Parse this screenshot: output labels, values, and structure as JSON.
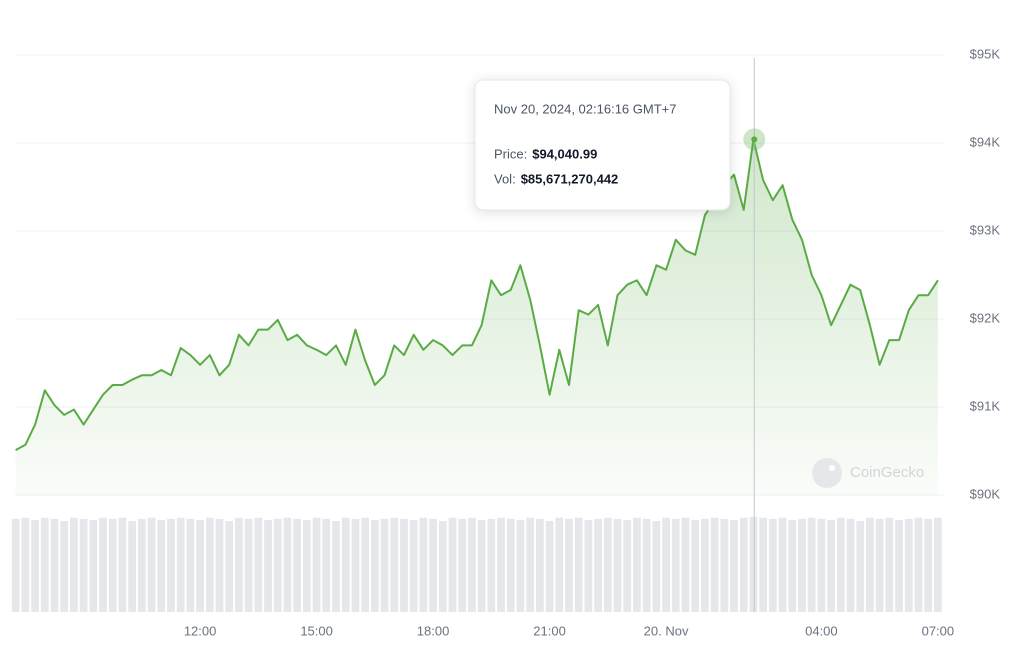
{
  "chart_data": {
    "type": "line",
    "x": [
      "2024-11-19 07:15",
      "2024-11-19 07:30",
      "2024-11-19 07:45",
      "2024-11-19 08:00",
      "2024-11-19 08:15",
      "2024-11-19 08:30",
      "2024-11-19 08:45",
      "2024-11-19 09:00",
      "2024-11-19 09:15",
      "2024-11-19 09:30",
      "2024-11-19 09:45",
      "2024-11-19 10:00",
      "2024-11-19 10:15",
      "2024-11-19 10:30",
      "2024-11-19 10:45",
      "2024-11-19 11:00",
      "2024-11-19 11:15",
      "2024-11-19 11:30",
      "2024-11-19 11:45",
      "2024-11-19 12:00",
      "2024-11-19 12:15",
      "2024-11-19 12:30",
      "2024-11-19 12:45",
      "2024-11-19 13:00",
      "2024-11-19 13:15",
      "2024-11-19 13:30",
      "2024-11-19 13:45",
      "2024-11-19 14:00",
      "2024-11-19 14:15",
      "2024-11-19 14:30",
      "2024-11-19 14:45",
      "2024-11-19 15:00",
      "2024-11-19 15:15",
      "2024-11-19 15:30",
      "2024-11-19 15:45",
      "2024-11-19 16:00",
      "2024-11-19 16:15",
      "2024-11-19 16:30",
      "2024-11-19 16:45",
      "2024-11-19 17:00",
      "2024-11-19 17:15",
      "2024-11-19 17:30",
      "2024-11-19 17:45",
      "2024-11-19 18:00",
      "2024-11-19 18:15",
      "2024-11-19 18:30",
      "2024-11-19 18:45",
      "2024-11-19 19:00",
      "2024-11-19 19:15",
      "2024-11-19 19:30",
      "2024-11-19 19:45",
      "2024-11-19 20:00",
      "2024-11-19 20:15",
      "2024-11-19 20:30",
      "2024-11-19 20:45",
      "2024-11-19 21:00",
      "2024-11-19 21:15",
      "2024-11-19 21:30",
      "2024-11-19 21:45",
      "2024-11-19 22:00",
      "2024-11-19 22:15",
      "2024-11-19 22:30",
      "2024-11-19 22:45",
      "2024-11-19 23:00",
      "2024-11-19 23:15",
      "2024-11-19 23:30",
      "2024-11-19 23:45",
      "2024-11-20 00:00",
      "2024-11-20 00:15",
      "2024-11-20 00:30",
      "2024-11-20 00:45",
      "2024-11-20 01:00",
      "2024-11-20 01:15",
      "2024-11-20 01:30",
      "2024-11-20 01:45",
      "2024-11-20 02:00",
      "2024-11-20 02:15",
      "2024-11-20 02:30",
      "2024-11-20 02:45",
      "2024-11-20 03:00",
      "2024-11-20 03:15",
      "2024-11-20 03:30",
      "2024-11-20 03:45",
      "2024-11-20 04:00",
      "2024-11-20 04:15",
      "2024-11-20 04:30",
      "2024-11-20 04:45",
      "2024-11-20 05:00",
      "2024-11-20 05:15",
      "2024-11-20 05:30",
      "2024-11-20 05:45",
      "2024-11-20 06:00",
      "2024-11-20 06:15",
      "2024-11-20 06:30",
      "2024-11-20 06:45",
      "2024-11-20 07:00"
    ],
    "series": [
      {
        "name": "Price",
        "color": "#5aab46",
        "values": [
          90510,
          90570,
          90800,
          91190,
          91020,
          90910,
          90970,
          90800,
          90970,
          91140,
          91250,
          91250,
          91310,
          91360,
          91360,
          91420,
          91360,
          91670,
          91590,
          91480,
          91590,
          91360,
          91480,
          91820,
          91700,
          91880,
          91880,
          91990,
          91760,
          91820,
          91700,
          91650,
          91590,
          91700,
          91480,
          91880,
          91530,
          91250,
          91360,
          91700,
          91590,
          91820,
          91650,
          91760,
          91700,
          91590,
          91700,
          91700,
          91930,
          92440,
          92270,
          92330,
          92610,
          92220,
          91700,
          91140,
          91650,
          91250,
          92100,
          92050,
          92160,
          91700,
          92270,
          92390,
          92440,
          92270,
          92610,
          92560,
          92900,
          92780,
          92730,
          93180,
          93350,
          93520,
          93640,
          93240,
          94040.99,
          93580,
          93350,
          93520,
          93130,
          92900,
          92500,
          92270,
          91930,
          92160,
          92390,
          92330,
          91930,
          91480,
          91760,
          91760,
          92100,
          92270,
          92270,
          92440
        ]
      },
      {
        "name": "Vol",
        "color": "#e5e7eb",
        "values": [
          84000000000.0,
          85000000000.0,
          83000000000.0,
          85000000000.0,
          84000000000.0,
          82000000000.0,
          85000000000.0,
          84000000000.0,
          83000000000.0,
          85000000000.0,
          84000000000.0,
          85000000000.0,
          82000000000.0,
          84000000000.0,
          85000000000.0,
          83000000000.0,
          84000000000.0,
          85000000000.0,
          84000000000.0,
          83000000000.0,
          85000000000.0,
          84000000000.0,
          82000000000.0,
          85000000000.0,
          84000000000.0,
          85000000000.0,
          83000000000.0,
          84000000000.0,
          85000000000.0,
          84000000000.0,
          83000000000.0,
          85000000000.0,
          84000000000.0,
          82000000000.0,
          85000000000.0,
          84000000000.0,
          85000000000.0,
          83000000000.0,
          84000000000.0,
          85000000000.0,
          84000000000.0,
          83000000000.0,
          85000000000.0,
          84000000000.0,
          82000000000.0,
          85000000000.0,
          84000000000.0,
          85000000000.0,
          83000000000.0,
          84000000000.0,
          85000000000.0,
          84000000000.0,
          83000000000.0,
          85000000000.0,
          84000000000.0,
          82000000000.0,
          85000000000.0,
          84000000000.0,
          85000000000.0,
          83000000000.0,
          84000000000.0,
          85000000000.0,
          84000000000.0,
          83000000000.0,
          85000000000.0,
          84000000000.0,
          82000000000.0,
          85000000000.0,
          84000000000.0,
          85000000000.0,
          83000000000.0,
          84000000000.0,
          85000000000.0,
          84000000000.0,
          83000000000.0,
          85000000000.0,
          85671270442,
          85000000000.0,
          84000000000.0,
          85000000000.0,
          83000000000.0,
          84000000000.0,
          85000000000.0,
          84000000000.0,
          83000000000.0,
          85000000000.0,
          84000000000.0,
          82000000000.0,
          85000000000.0,
          84000000000.0,
          85000000000.0,
          83000000000.0,
          84000000000.0,
          85000000000.0,
          84000000000.0,
          85000000000.0
        ]
      }
    ],
    "xlim": [
      "2024-11-19 07:14",
      "2024-11-20 07:11"
    ],
    "xticks": [
      {
        "value": "2024-11-19 12:00",
        "label": "12:00"
      },
      {
        "value": "2024-11-19 15:00",
        "label": "15:00"
      },
      {
        "value": "2024-11-19 18:00",
        "label": "18:00"
      },
      {
        "value": "2024-11-19 21:00",
        "label": "21:00"
      },
      {
        "value": "2024-11-20 00:00",
        "label": "20. Nov"
      },
      {
        "value": "2024-11-20 04:00",
        "label": "04:00"
      },
      {
        "value": "2024-11-20 07:00",
        "label": "07:00"
      }
    ],
    "ylim": [
      90000,
      95000
    ],
    "yticks": [
      {
        "value": 90000,
        "label": "$90K"
      },
      {
        "value": 91000,
        "label": "$91K"
      },
      {
        "value": 92000,
        "label": "$92K"
      },
      {
        "value": 93000,
        "label": "$93K"
      },
      {
        "value": 94000,
        "label": "$94K"
      },
      {
        "value": 95000,
        "label": "$95K"
      }
    ],
    "grid": true,
    "tooltip": {
      "index": 76,
      "time": "2024-11-20 02:16:16",
      "title": "Nov 20, 2024, 02:16:16 GMT+7",
      "price_caption": "Price:",
      "price_label": "$94,040.99",
      "vol_caption": "Vol:",
      "vol_label": "$85,671,270,442"
    },
    "watermark": "CoinGecko"
  }
}
